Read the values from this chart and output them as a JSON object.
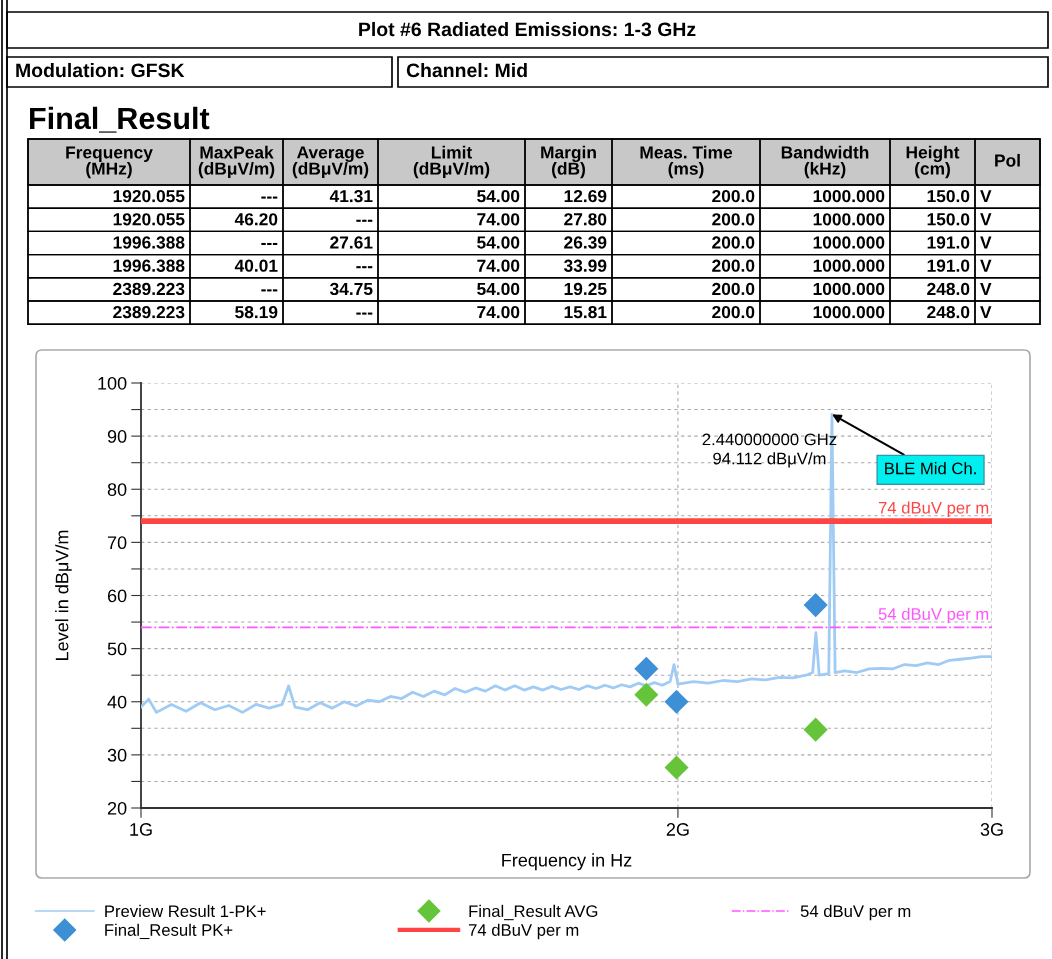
{
  "chart_data": [
    {
      "type": "other",
      "title": "Plot #6 Radiated Emissions: 1-3 GHz",
      "annotations": [
        "Modulation: GFSK",
        "Channel: Mid",
        "Final_Result",
        "Frequency\n(MHz)",
        "MaxPeak\n(dBμV/m)",
        "Average\n(dBμV/m)",
        "Limit\n(dBμV/m)",
        "Margin\n(dB)",
        "Meas. Time\n(ms)",
        "Bandwidth\n(kHz)",
        "Height\n(cm)",
        "Pol",
        "1920.055",
        "---",
        "41.31",
        "54.00",
        "12.69",
        "200.0",
        "1000.000",
        "150.0",
        "V",
        "1920.055",
        "46.20",
        "---",
        "74.00",
        "27.80",
        "200.0",
        "1000.000",
        "150.0",
        "V",
        "1996.388",
        "---",
        "27.61",
        "54.00",
        "26.39",
        "200.0",
        "1000.000",
        "191.0",
        "V",
        "1996.388",
        "40.01",
        "---",
        "74.00",
        "33.99",
        "200.0",
        "1000.000",
        "191.0",
        "V",
        "2389.223",
        "---",
        "34.75",
        "54.00",
        "19.25",
        "200.0",
        "1000.000",
        "248.0",
        "V",
        "2389.223",
        "58.19",
        "---",
        "74.00",
        "15.81",
        "200.0",
        "1000.000",
        "248.0",
        "V"
      ]
    },
    {
      "type": "line",
      "xlabel": "Frequency in Hz",
      "ylabel": "Level in dBμV/m",
      "log": "x",
      "xlim": [
        1,
        3
      ],
      "xticks": [
        {
          "value": 1,
          "label": "1G"
        },
        {
          "value": 2,
          "label": "2G"
        },
        {
          "value": 3,
          "label": "3G"
        }
      ],
      "ylim": [
        20,
        100
      ],
      "yticks": [
        20,
        {
          "value": 25,
          "label": null
        },
        30,
        {
          "value": 35,
          "label": null
        },
        40,
        {
          "value": 45,
          "label": null
        },
        50,
        {
          "value": 55,
          "label": null
        },
        60,
        {
          "value": 65,
          "label": null
        },
        70,
        {
          "value": 75,
          "label": null
        },
        80,
        {
          "value": 85,
          "label": null
        },
        90,
        {
          "value": 95,
          "label": null
        },
        100
      ],
      "grid": true,
      "legend": "bottom",
      "series": [
        {
          "name": "Preview Result 1-PK+",
          "type": "line",
          "color": "#a0cbf5",
          "marker": "none",
          "x": [
            1.0,
            1.01,
            1.02,
            1.04,
            1.06,
            1.08,
            1.1,
            1.12,
            1.14,
            1.16,
            1.18,
            1.2,
            1.21,
            1.22,
            1.24,
            1.26,
            1.28,
            1.3,
            1.32,
            1.34,
            1.36,
            1.38,
            1.4,
            1.42,
            1.44,
            1.46,
            1.48,
            1.5,
            1.52,
            1.54,
            1.56,
            1.58,
            1.6,
            1.62,
            1.64,
            1.66,
            1.68,
            1.7,
            1.72,
            1.74,
            1.76,
            1.78,
            1.8,
            1.82,
            1.84,
            1.86,
            1.88,
            1.9,
            1.92,
            1.94,
            1.96,
            1.98,
            1.99,
            2.0,
            2.04,
            2.08,
            2.12,
            2.16,
            2.2,
            2.24,
            2.28,
            2.32,
            2.36,
            2.38,
            2.39,
            2.4,
            2.43,
            2.44,
            2.45,
            2.48,
            2.52,
            2.56,
            2.6,
            2.64,
            2.68,
            2.72,
            2.76,
            2.8,
            2.84,
            2.88,
            2.92,
            2.96,
            3.0
          ],
          "values": [
            39,
            40.5,
            38,
            39.5,
            38.2,
            39.8,
            38.5,
            39.3,
            38,
            39.5,
            38.8,
            39.5,
            43,
            39,
            38.5,
            39.8,
            38.8,
            40,
            39.2,
            40.3,
            40,
            41,
            40.6,
            41.8,
            41,
            42,
            41.3,
            42.5,
            41.8,
            42.6,
            42,
            43,
            42.2,
            43,
            42.2,
            42.8,
            42.2,
            42.9,
            42.3,
            42.8,
            42.3,
            43,
            42.5,
            43.1,
            42.6,
            43.2,
            42.8,
            43.5,
            43,
            43.6,
            43.1,
            43.8,
            47,
            43.3,
            43.8,
            43.5,
            44,
            43.8,
            44.3,
            44.1,
            44.6,
            44.5,
            45,
            45.5,
            53,
            45,
            45.3,
            94.112,
            45.5,
            45.8,
            45.5,
            46.2,
            46.3,
            46.2,
            47,
            46.8,
            47.3,
            47,
            47.8,
            48,
            48.2,
            48.5,
            48.5
          ]
        },
        {
          "name": "Final_Result PK+",
          "type": "scatter",
          "color": "#3d8fd6",
          "marker": "diamond",
          "x": [
            1.920055,
            1.996388,
            2.389223
          ],
          "values": [
            46.2,
            40.01,
            58.19
          ]
        },
        {
          "name": "Final_Result AVG",
          "type": "scatter",
          "color": "#66c43a",
          "marker": "diamond",
          "x": [
            1.920055,
            1.996388,
            2.389223
          ],
          "values": [
            41.31,
            27.61,
            34.75
          ]
        }
      ],
      "ref_lines": [
        {
          "axis": "y",
          "value": 74,
          "label": "74 dBuV per m",
          "color": "#ff4444",
          "line_style": "solid"
        },
        {
          "axis": "y",
          "value": 54,
          "label": "54 dBuV per m",
          "color": "#ff55ff",
          "line_style": "dashdot"
        }
      ],
      "annotations": [
        {
          "text": "2.440000000 GHz\n94.112 dBμV/m",
          "x": 2.44,
          "y": 94.112
        },
        {
          "text": "BLE Mid Ch.",
          "x": 2.44,
          "y": 94.112
        }
      ]
    }
  ]
}
